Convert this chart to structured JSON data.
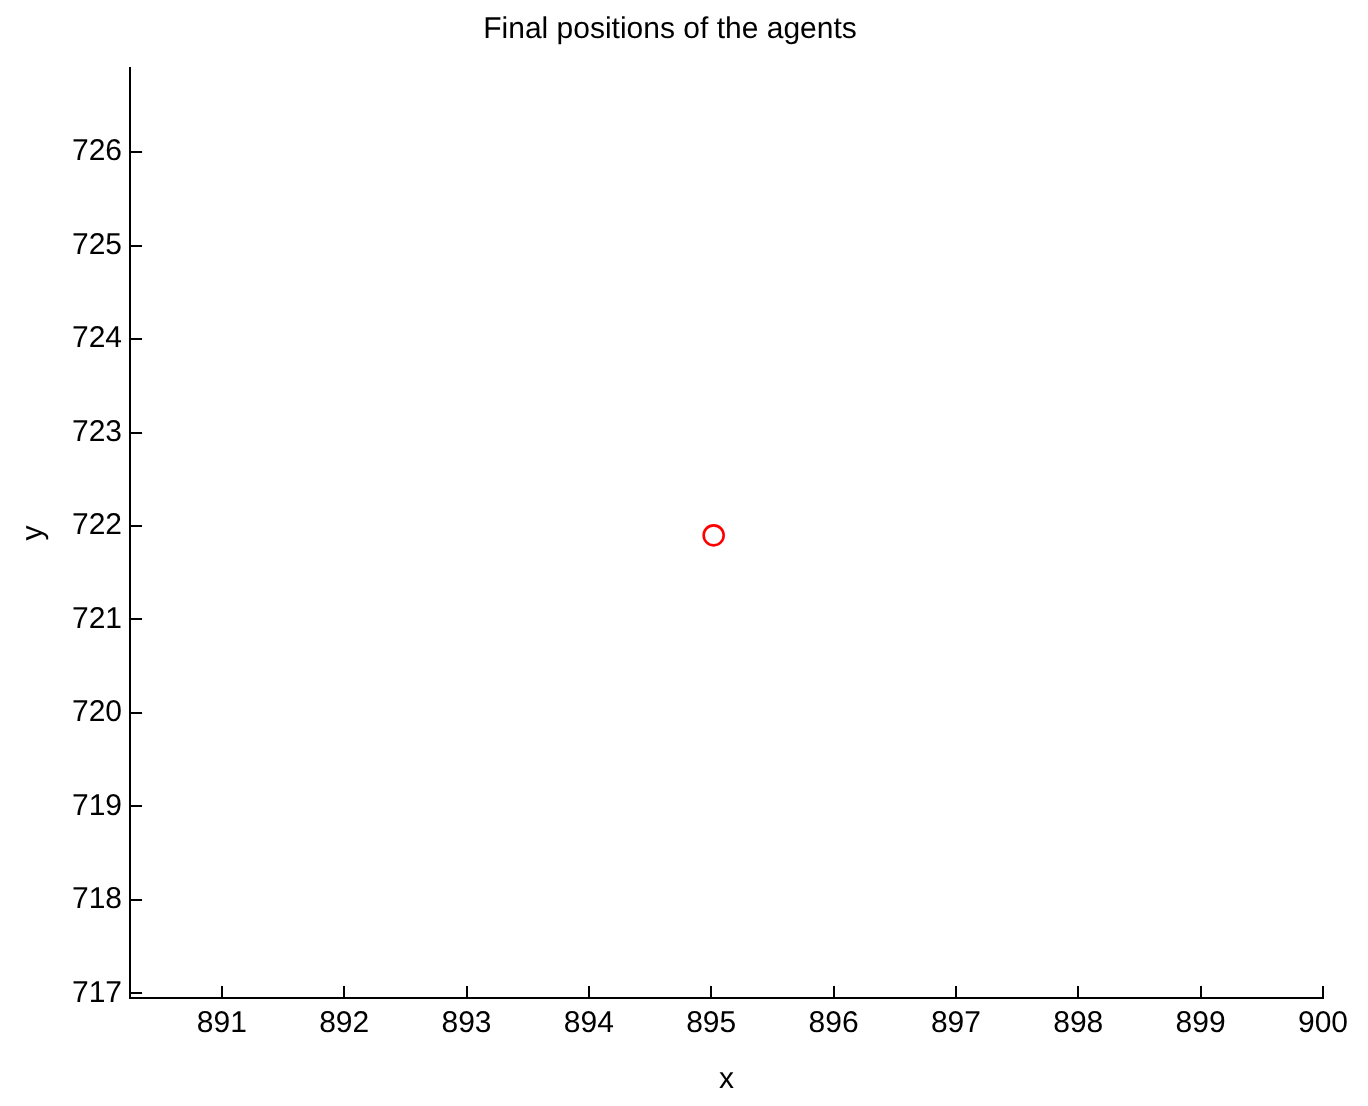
{
  "chart_data": {
    "type": "scatter",
    "title": "Final positions of the agents",
    "xlabel": "x",
    "ylabel": "y",
    "series": [
      {
        "color": "#ff0000",
        "x": [
          895.02
        ],
        "values": [
          721.9
        ]
      }
    ],
    "xlim": [
      890.25,
      900
    ],
    "xticks": [
      891,
      892,
      893,
      894,
      895,
      896,
      897,
      898,
      899,
      900
    ],
    "ylim": [
      716.95,
      726.9
    ],
    "yticks": [
      717,
      718,
      719,
      720,
      721,
      722,
      723,
      724,
      725,
      726
    ],
    "grid": false,
    "legend": false,
    "marker": "circle"
  }
}
